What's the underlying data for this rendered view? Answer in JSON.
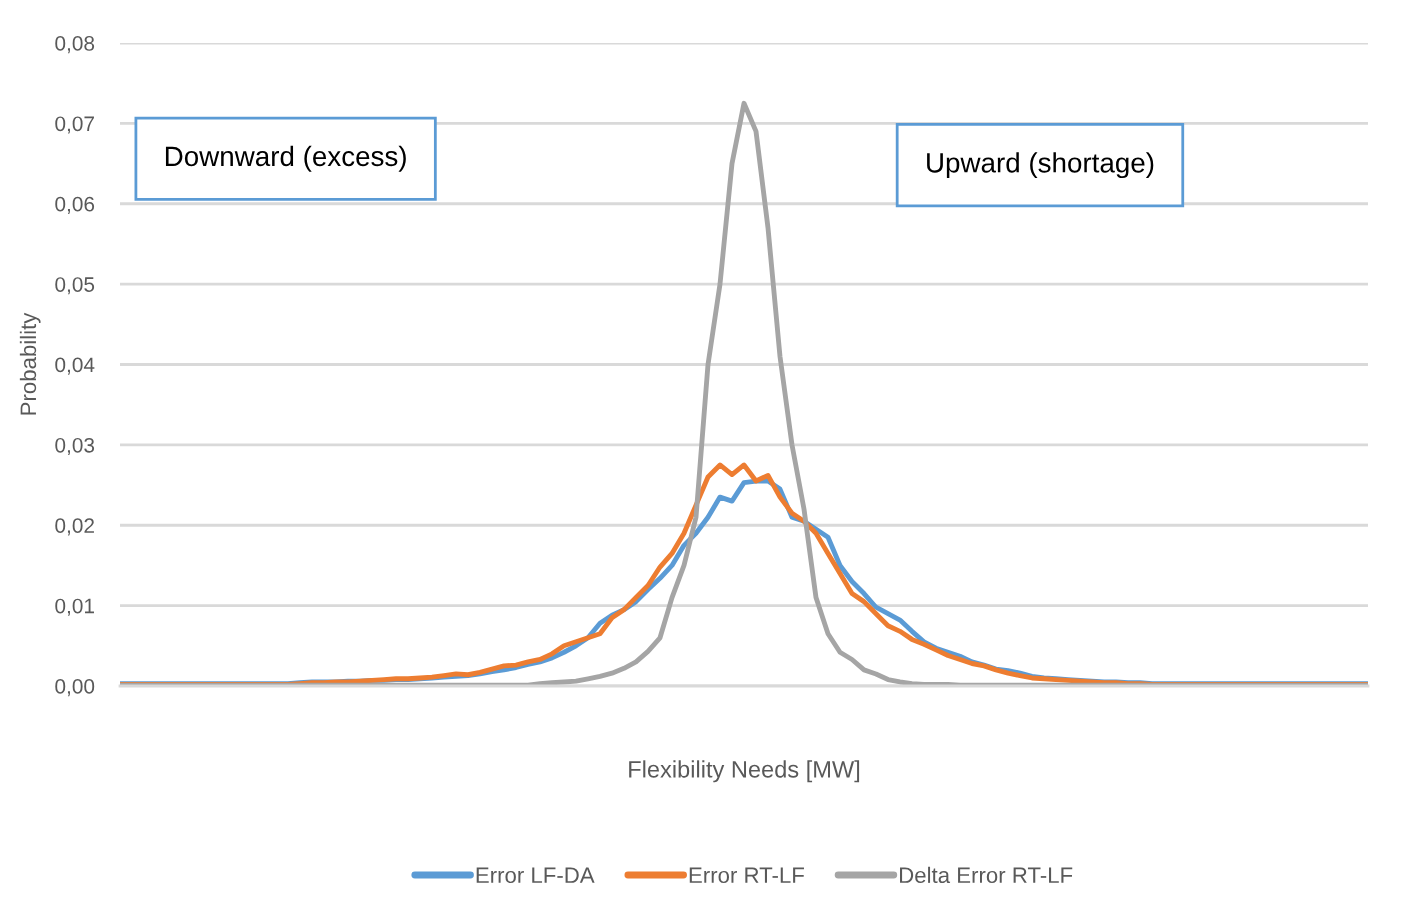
{
  "chart_data": {
    "type": "line",
    "xlabel": "Flexibility Needs [MW]",
    "ylabel": "Probability",
    "categories": [
      null,
      null,
      null,
      null,
      null,
      null,
      null,
      null,
      null,
      null,
      null,
      null,
      null,
      null,
      null,
      null,
      null,
      null,
      null,
      null,
      null,
      null,
      null,
      null,
      null,
      null,
      null,
      null,
      null,
      null,
      null,
      null,
      null,
      null,
      null,
      null,
      null,
      null,
      null,
      null,
      null,
      null,
      null,
      null,
      null,
      null,
      null,
      null,
      null,
      null,
      null,
      null,
      null,
      null,
      null,
      null,
      null,
      null,
      null,
      null,
      null,
      null,
      null,
      null,
      null,
      null,
      null,
      null,
      null,
      null,
      null,
      null,
      null,
      null,
      null,
      null,
      null,
      null,
      null,
      null,
      null,
      null,
      null,
      null,
      null,
      null,
      null,
      null,
      null,
      null,
      null,
      null,
      null,
      null,
      null,
      null,
      null,
      null,
      null,
      null,
      null,
      null,
      null,
      null,
      null
    ],
    "series": [
      {
        "name": "Error LF-DA",
        "color": "#5b9bd5",
        "values": [
          0.0003,
          0.0003,
          0.0003,
          0.0003,
          0.0003,
          0.0003,
          0.0003,
          0.0003,
          0.0003,
          0.0003,
          0.0003,
          0.0003,
          0.0003,
          0.0003,
          0.0003,
          0.0004,
          0.0005,
          0.0005,
          0.0005,
          0.0006,
          0.0006,
          0.0007,
          0.0007,
          0.0008,
          0.0008,
          0.0009,
          0.001,
          0.0011,
          0.0012,
          0.0013,
          0.0015,
          0.0018,
          0.002,
          0.0023,
          0.0027,
          0.003,
          0.0035,
          0.0042,
          0.005,
          0.006,
          0.0078,
          0.0088,
          0.0095,
          0.0105,
          0.012,
          0.0134,
          0.015,
          0.0175,
          0.019,
          0.021,
          0.0235,
          0.023,
          0.0253,
          0.0255,
          0.0255,
          0.0245,
          0.021,
          0.0205,
          0.0195,
          0.0185,
          0.015,
          0.013,
          0.0115,
          0.0098,
          0.009,
          0.0082,
          0.0068,
          0.0055,
          0.0047,
          0.0042,
          0.0037,
          0.003,
          0.0026,
          0.0021,
          0.0019,
          0.0016,
          0.0012,
          0.001,
          0.0009,
          0.0008,
          0.0007,
          0.0006,
          0.0005,
          0.0005,
          0.0004,
          0.0004,
          0.0003,
          0.0003,
          0.0003,
          0.0003,
          0.0003,
          0.0003,
          0.0003,
          0.0003,
          0.0003,
          0.0003,
          0.0003,
          0.0003,
          0.0003,
          0.0003,
          0.0003,
          0.0003,
          0.0003,
          0.0003,
          0.0003
        ]
      },
      {
        "name": "Error RT-LF",
        "color": "#ed7d31",
        "values": [
          0.0002,
          0.0002,
          0.0002,
          0.0002,
          0.0002,
          0.0002,
          0.0002,
          0.0002,
          0.0002,
          0.0002,
          0.0002,
          0.0002,
          0.0002,
          0.0002,
          0.0002,
          0.0003,
          0.0004,
          0.0004,
          0.0005,
          0.0005,
          0.0006,
          0.0007,
          0.0008,
          0.0009,
          0.0009,
          0.001,
          0.0011,
          0.0013,
          0.0015,
          0.0014,
          0.0017,
          0.0021,
          0.0025,
          0.0026,
          0.003,
          0.0033,
          0.004,
          0.005,
          0.0055,
          0.006,
          0.0065,
          0.0085,
          0.0095,
          0.011,
          0.0125,
          0.0148,
          0.0165,
          0.019,
          0.0225,
          0.026,
          0.0275,
          0.0263,
          0.0275,
          0.0255,
          0.0262,
          0.0235,
          0.0215,
          0.0205,
          0.019,
          0.0165,
          0.014,
          0.0115,
          0.0105,
          0.009,
          0.0075,
          0.0068,
          0.0058,
          0.0052,
          0.0045,
          0.0038,
          0.0033,
          0.0028,
          0.0025,
          0.002,
          0.0016,
          0.0013,
          0.001,
          0.0009,
          0.0008,
          0.0007,
          0.0006,
          0.0005,
          0.0004,
          0.0004,
          0.0003,
          0.0003,
          0.0002,
          0.0002,
          0.0002,
          0.0002,
          0.0002,
          0.0002,
          0.0002,
          0.0002,
          0.0002,
          0.0002,
          0.0002,
          0.0002,
          0.0002,
          0.0002,
          0.0002,
          0.0002,
          0.0002,
          0.0002,
          0.0002
        ]
      },
      {
        "name": "Delta Error RT-LF",
        "color": "#a5a5a5",
        "values": [
          0.0001,
          0.0001,
          0.0001,
          0.0001,
          0.0001,
          0.0001,
          0.0001,
          0.0001,
          0.0001,
          0.0001,
          0.0001,
          0.0001,
          0.0001,
          0.0001,
          0.0001,
          0.0001,
          0.0001,
          0.0001,
          0.0001,
          0.0001,
          0.0001,
          0.0001,
          0.0001,
          0.0001,
          0.0001,
          0.0001,
          0.0001,
          0.0001,
          0.0001,
          0.0001,
          0.0001,
          0.0001,
          0.0001,
          0.0001,
          0.0001,
          0.0003,
          0.0004,
          0.0005,
          0.0006,
          0.0009,
          0.0012,
          0.0016,
          0.0022,
          0.003,
          0.0043,
          0.006,
          0.011,
          0.015,
          0.021,
          0.04,
          0.05,
          0.065,
          0.0725,
          0.069,
          0.057,
          0.041,
          0.03,
          0.022,
          0.011,
          0.0065,
          0.0042,
          0.0033,
          0.002,
          0.0015,
          0.0008,
          0.0005,
          0.0003,
          0.0002,
          0.0002,
          0.0002,
          0.0001,
          0.0001,
          0.0001,
          0.0001,
          0.0001,
          0.0001,
          0.0001,
          0.0001,
          0.0001,
          0.0001,
          0.0001,
          0.0001,
          0.0001,
          0.0001,
          0.0001,
          0.0001,
          0.0001,
          0.0001,
          0.0001,
          0.0001,
          0.0001,
          0.0001,
          0.0001,
          0.0001,
          0.0001,
          0.0001,
          0.0001,
          0.0001,
          0.0001,
          0.0001,
          0.0001,
          0.0001,
          0.0001,
          0.0001,
          0.0001
        ]
      }
    ],
    "ylim": [
      0,
      0.08
    ],
    "yticks": [
      {
        "value": 0,
        "label": "0,00"
      },
      {
        "value": 0.01,
        "label": "0,01"
      },
      {
        "value": 0.02,
        "label": "0,02"
      },
      {
        "value": 0.03,
        "label": "0,03"
      },
      {
        "value": 0.04,
        "label": "0,04"
      },
      {
        "value": 0.05,
        "label": "0,05"
      },
      {
        "value": 0.06,
        "label": "0,06"
      },
      {
        "value": 0.07,
        "label": "0,07"
      },
      {
        "value": 0.08,
        "label": "0,08"
      }
    ],
    "annotations": [
      "Downward (excess)",
      "Upward (shortage)"
    ],
    "grid": "y",
    "legend": "bottom",
    "tick_labels": "y",
    "marker": "none",
    "line_style": "solid"
  }
}
